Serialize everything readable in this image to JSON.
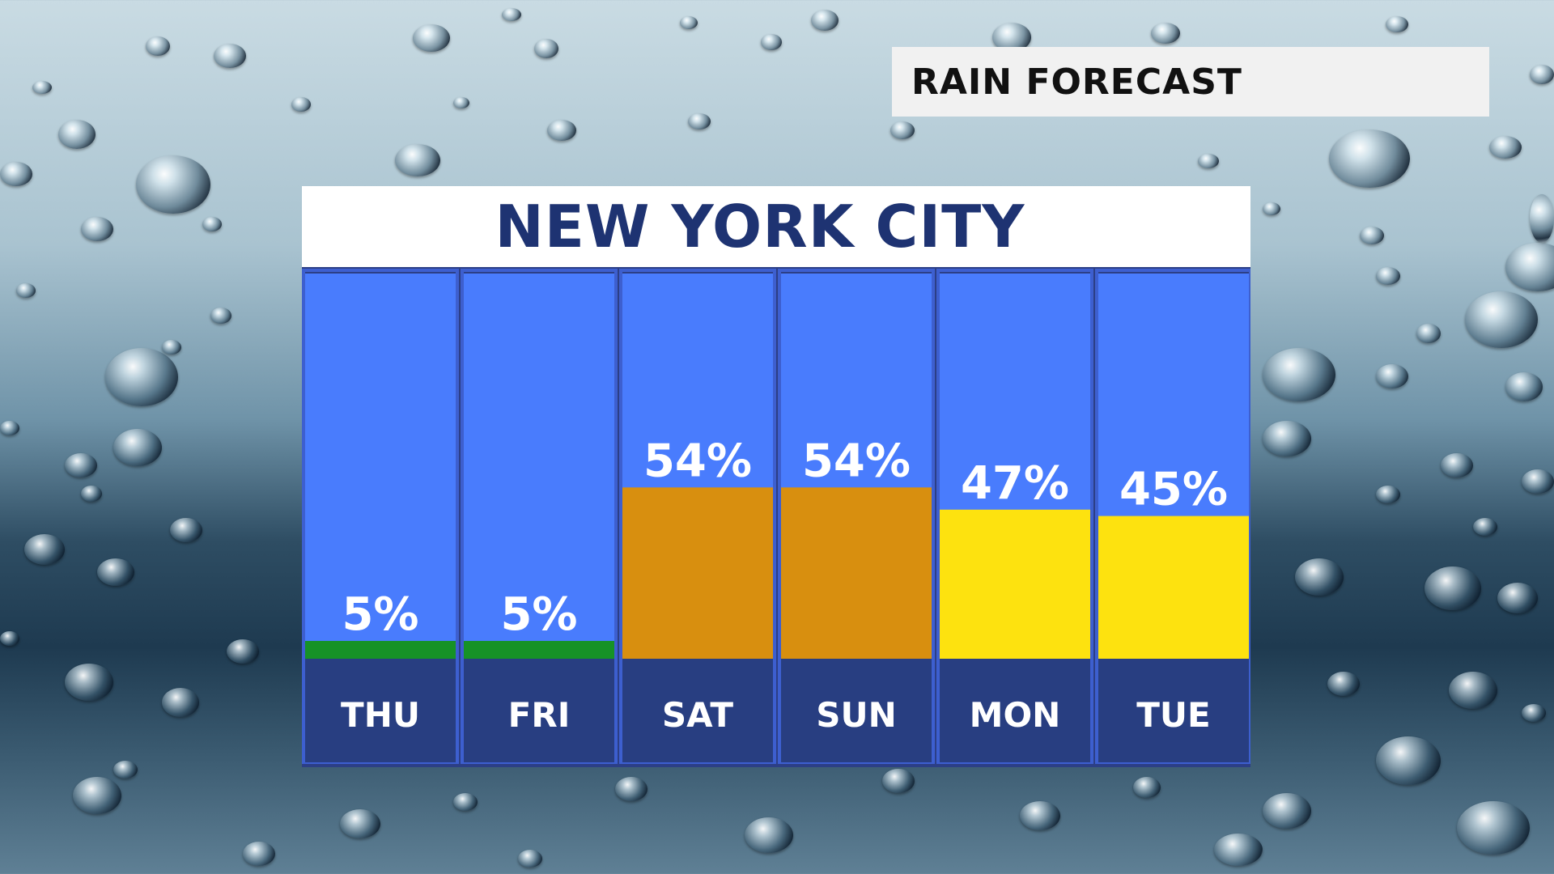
{
  "header": {
    "label": "RAIN FORECAST"
  },
  "chart_data": {
    "type": "bar",
    "title": "NEW YORK CITY",
    "categories": [
      "THU",
      "FRI",
      "SAT",
      "SUN",
      "MON",
      "TUE"
    ],
    "values": [
      5,
      5,
      54,
      54,
      47,
      45
    ],
    "value_labels": [
      "5%",
      "5%",
      "54%",
      "54%",
      "47%",
      "45%"
    ],
    "unit": "%",
    "ylim": [
      0,
      100
    ],
    "grid": false,
    "legend": "none",
    "bar_colors": [
      "#169226",
      "#169226",
      "#d88f0f",
      "#d88f0f",
      "#fde20f",
      "#fde20f"
    ],
    "background_color": "#497cfd",
    "day_band_color": "#283e81",
    "frame_color": "#3d5fcf",
    "title_color": "#1e3372",
    "label_color": "#ffffff"
  }
}
